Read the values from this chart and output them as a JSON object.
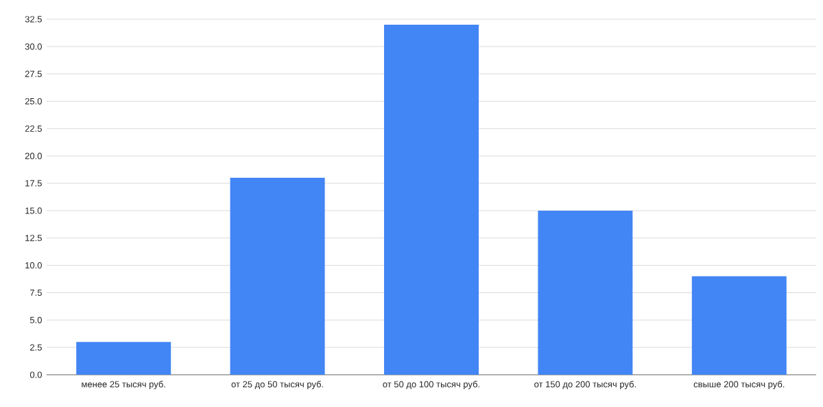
{
  "chart_data": {
    "type": "bar",
    "categories": [
      "менее 25 тысяч руб.",
      "от 25 до 50 тысяч руб.",
      "от 50 до 100 тысяч руб.",
      "от 150 до 200 тысяч руб.",
      "свыше 200 тысяч руб."
    ],
    "values": [
      3,
      18,
      32,
      15,
      9
    ],
    "color": "#4285f4",
    "ylim": [
      0,
      32.5
    ],
    "yticks": [
      {
        "value": 0,
        "label": "0.0"
      },
      {
        "value": 2.5,
        "label": "2.5"
      },
      {
        "value": 5,
        "label": "5.0"
      },
      {
        "value": 7.5,
        "label": "7.5"
      },
      {
        "value": 10,
        "label": "10.0"
      },
      {
        "value": 12.5,
        "label": "12.5"
      },
      {
        "value": 15,
        "label": "15.0"
      },
      {
        "value": 17.5,
        "label": "17.5"
      },
      {
        "value": 20,
        "label": "20.0"
      },
      {
        "value": 22.5,
        "label": "22.5"
      },
      {
        "value": 25,
        "label": "25.0"
      },
      {
        "value": 27.5,
        "label": "27.5"
      },
      {
        "value": 30,
        "label": "30.0"
      },
      {
        "value": 32.5,
        "label": "32.5"
      }
    ],
    "grid": "y"
  }
}
